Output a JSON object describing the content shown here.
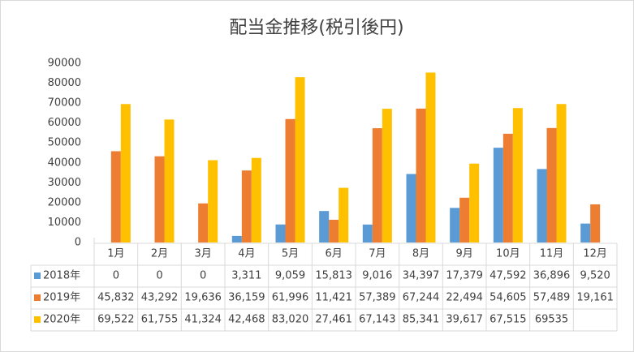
{
  "chart_data": {
    "type": "bar",
    "title": "配当金推移(税引後円)",
    "categories": [
      "1月",
      "2月",
      "3月",
      "4月",
      "5月",
      "6月",
      "7月",
      "8月",
      "9月",
      "10月",
      "11月",
      "12月"
    ],
    "series": [
      {
        "name": "2018年",
        "color": "#5b9bd5",
        "values": [
          0,
          0,
          0,
          3311,
          9059,
          15813,
          9016,
          34397,
          17379,
          47592,
          36896,
          9520
        ],
        "value_labels": [
          "0",
          "0",
          "0",
          "3,311",
          "9,059",
          "15,813",
          "9,016",
          "34,397",
          "17,379",
          "47,592",
          "36,896",
          "9,520"
        ]
      },
      {
        "name": "2019年",
        "color": "#ed7d31",
        "values": [
          45832,
          43292,
          19636,
          36159,
          61996,
          11421,
          57389,
          67244,
          22494,
          54605,
          57489,
          19161
        ],
        "value_labels": [
          "45,832",
          "43,292",
          "19,636",
          "36,159",
          "61,996",
          "11,421",
          "57,389",
          "67,244",
          "22,494",
          "54,605",
          "57,489",
          "19,161"
        ]
      },
      {
        "name": "2020年",
        "color": "#ffc000",
        "values": [
          69522,
          61755,
          41324,
          42468,
          83020,
          27461,
          67143,
          85341,
          39617,
          67515,
          69535,
          null
        ],
        "value_labels": [
          "69,522",
          "61,755",
          "41,324",
          "42,468",
          "83,020",
          "27,461",
          "67,143",
          "85,341",
          "39,617",
          "67,515",
          "69535",
          null
        ]
      }
    ],
    "ylim": [
      0,
      90000
    ],
    "yticks": [
      0,
      10000,
      20000,
      30000,
      40000,
      50000,
      60000,
      70000,
      80000,
      90000
    ],
    "grid": false
  }
}
